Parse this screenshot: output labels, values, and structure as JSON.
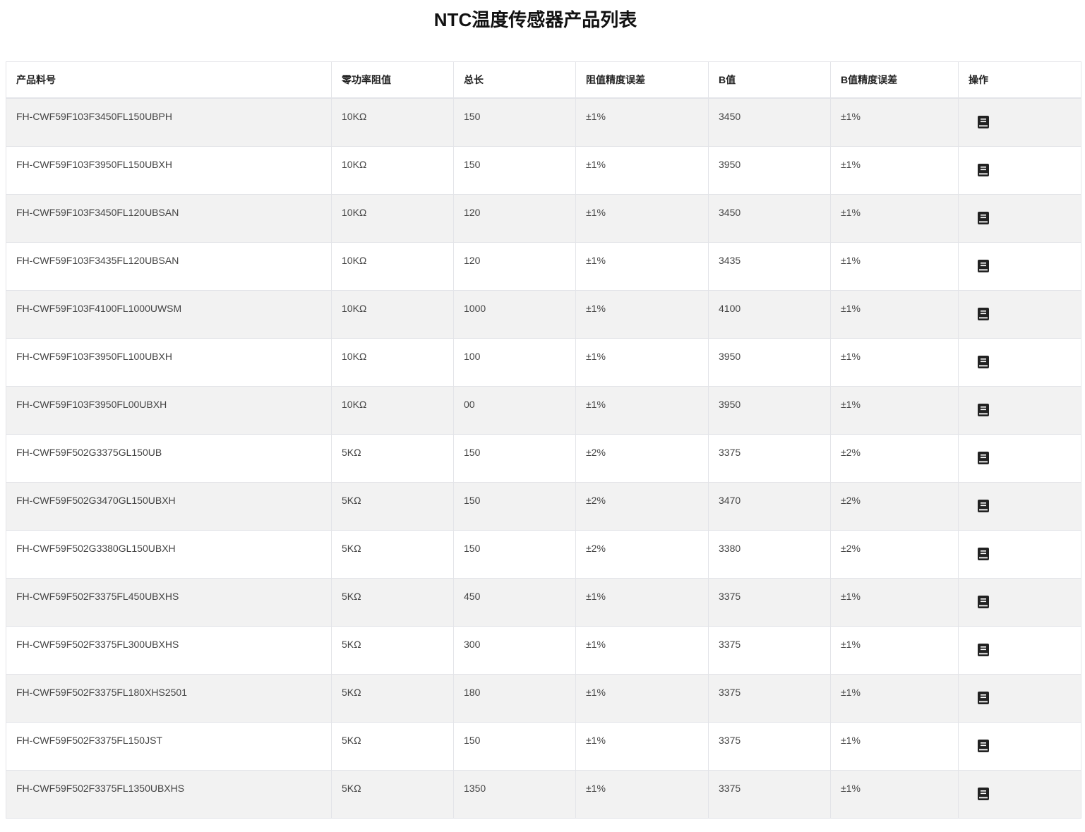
{
  "title": "NTC温度传感器产品列表",
  "table": {
    "headers": [
      "产品料号",
      "零功率阻值",
      "总长",
      "阻值精度误差",
      "B值",
      "B值精度误差",
      "操作"
    ],
    "action_icon": "book-icon",
    "rows": [
      [
        "FH-CWF59F103F3450FL150UBPH",
        "10KΩ",
        "150",
        "±1%",
        "3450",
        "±1%"
      ],
      [
        "FH-CWF59F103F3950FL150UBXH",
        "10KΩ",
        "150",
        "±1%",
        "3950",
        "±1%"
      ],
      [
        "FH-CWF59F103F3450FL120UBSAN",
        "10KΩ",
        "120",
        "±1%",
        "3450",
        "±1%"
      ],
      [
        "FH-CWF59F103F3435FL120UBSAN",
        "10KΩ",
        "120",
        "±1%",
        "3435",
        "±1%"
      ],
      [
        "FH-CWF59F103F4100FL1000UWSM",
        "10KΩ",
        "1000",
        "±1%",
        "4100",
        "±1%"
      ],
      [
        "FH-CWF59F103F3950FL100UBXH",
        "10KΩ",
        "100",
        "±1%",
        "3950",
        "±1%"
      ],
      [
        "FH-CWF59F103F3950FL00UBXH",
        "10KΩ",
        "00",
        "±1%",
        "3950",
        "±1%"
      ],
      [
        "FH-CWF59F502G3375GL150UB",
        "5KΩ",
        "150",
        "±2%",
        "3375",
        "±2%"
      ],
      [
        "FH-CWF59F502G3470GL150UBXH",
        "5KΩ",
        "150",
        "±2%",
        "3470",
        "±2%"
      ],
      [
        "FH-CWF59F502G3380GL150UBXH",
        "5KΩ",
        "150",
        "±2%",
        "3380",
        "±2%"
      ],
      [
        "FH-CWF59F502F3375FL450UBXHS",
        "5KΩ",
        "450",
        "±1%",
        "3375",
        "±1%"
      ],
      [
        "FH-CWF59F502F3375FL300UBXHS",
        "5KΩ",
        "300",
        "±1%",
        "3375",
        "±1%"
      ],
      [
        "FH-CWF59F502F3375FL180XHS2501",
        "5KΩ",
        "180",
        "±1%",
        "3375",
        "±1%"
      ],
      [
        "FH-CWF59F502F3375FL150JST",
        "5KΩ",
        "150",
        "±1%",
        "3375",
        "±1%"
      ],
      [
        "FH-CWF59F502F3375FL1350UBXHS",
        "5KΩ",
        "1350",
        "±1%",
        "3375",
        "±1%"
      ]
    ]
  }
}
